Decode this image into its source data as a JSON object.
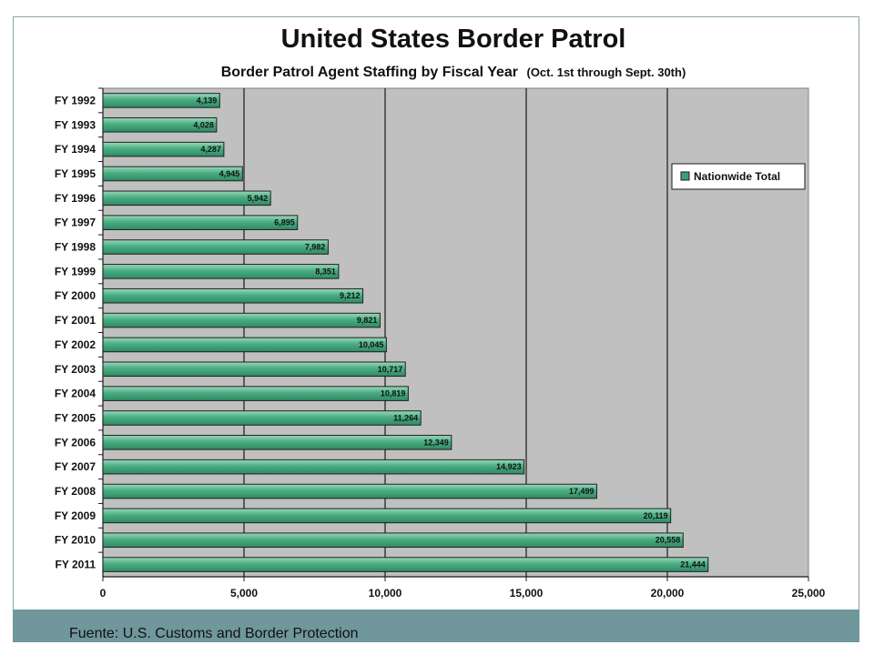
{
  "slide": {
    "source_note": "Fuente: U.S. Customs and Border Protection"
  },
  "colors": {
    "plot_background": "#c0c0c0",
    "bar_fill": "#3c9e74",
    "bar_highlight": "#8ed0b0",
    "bar_stroke": "#1f1f1f",
    "band": "#6f979c"
  },
  "chart_data": {
    "type": "bar",
    "orientation": "horizontal",
    "title": "United States Border Patrol",
    "subtitle": "Border Patrol Agent Staffing by Fiscal Year",
    "subtitle_note": "(Oct. 1st through Sept. 30th)",
    "categories": [
      "FY 1992",
      "FY 1993",
      "FY 1994",
      "FY 1995",
      "FY 1996",
      "FY 1997",
      "FY 1998",
      "FY 1999",
      "FY 2000",
      "FY 2001",
      "FY 2002",
      "FY 2003",
      "FY 2004",
      "FY 2005",
      "FY 2006",
      "FY 2007",
      "FY 2008",
      "FY 2009",
      "FY 2010",
      "FY 2011"
    ],
    "series": [
      {
        "name": "Nationwide Total",
        "values": [
          4139,
          4028,
          4287,
          4945,
          5942,
          6895,
          7982,
          8351,
          9212,
          9821,
          10045,
          10717,
          10819,
          11264,
          12349,
          14923,
          17499,
          20119,
          20558,
          21444
        ],
        "labels": [
          "4,139",
          "4,028",
          "4,287",
          "4,945",
          "5,942",
          "6,895",
          "7,982",
          "8,351",
          "9,212",
          "9,821",
          "10,045",
          "10,717",
          "10,819",
          "11,264",
          "12,349",
          "14,923",
          "17,499",
          "20,119",
          "20,558",
          "21,444"
        ]
      }
    ],
    "xlim": [
      0,
      25000
    ],
    "xticks": [
      0,
      5000,
      10000,
      15000,
      20000,
      25000
    ],
    "xtick_labels": [
      "0",
      "5,000",
      "10,000",
      "15,000",
      "20,000",
      "25,000"
    ],
    "xlabel": "",
    "ylabel": "",
    "grid": "vertical",
    "legend": {
      "placement": "right",
      "entries": [
        "Nationwide Total"
      ]
    }
  }
}
